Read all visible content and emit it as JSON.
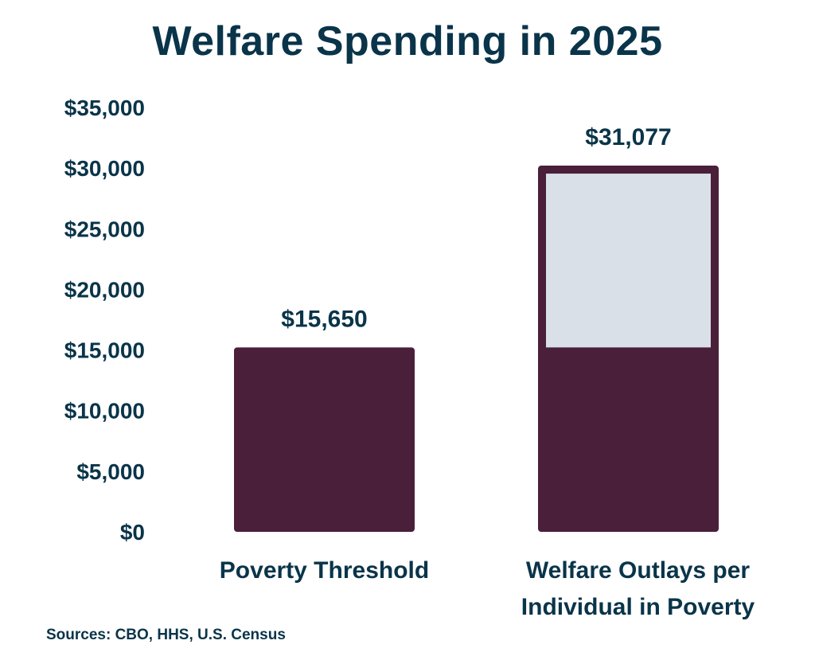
{
  "chart_data": {
    "type": "bar",
    "title": "Welfare Spending in 2025",
    "categories": [
      [
        "Poverty Threshold"
      ],
      [
        "Welfare Outlays per",
        "Individual in Poverty"
      ]
    ],
    "values": [
      15650,
      31077
    ],
    "data_labels": [
      "$15,650",
      "$31,077"
    ],
    "overlay_on_second_bar": {
      "solid_portion_value": 15650,
      "remainder": "outlined, light fill"
    },
    "ylim": [
      0,
      35000
    ],
    "yticks": [
      0,
      5000,
      10000,
      15000,
      20000,
      25000,
      30000,
      35000
    ],
    "ytick_labels": [
      "$0",
      "$5,000",
      "$10,000",
      "$15,000",
      "$20,000",
      "$25,000",
      "$30,000",
      "$35,000"
    ],
    "xlabel": "",
    "ylabel": "",
    "grid": false,
    "legend": "none",
    "colors": {
      "bar": "#4a1f3a",
      "outline_fill": "#d9e0e8",
      "text": "#0a3449"
    }
  },
  "source": "Sources: CBO, HHS, U.S. Census"
}
